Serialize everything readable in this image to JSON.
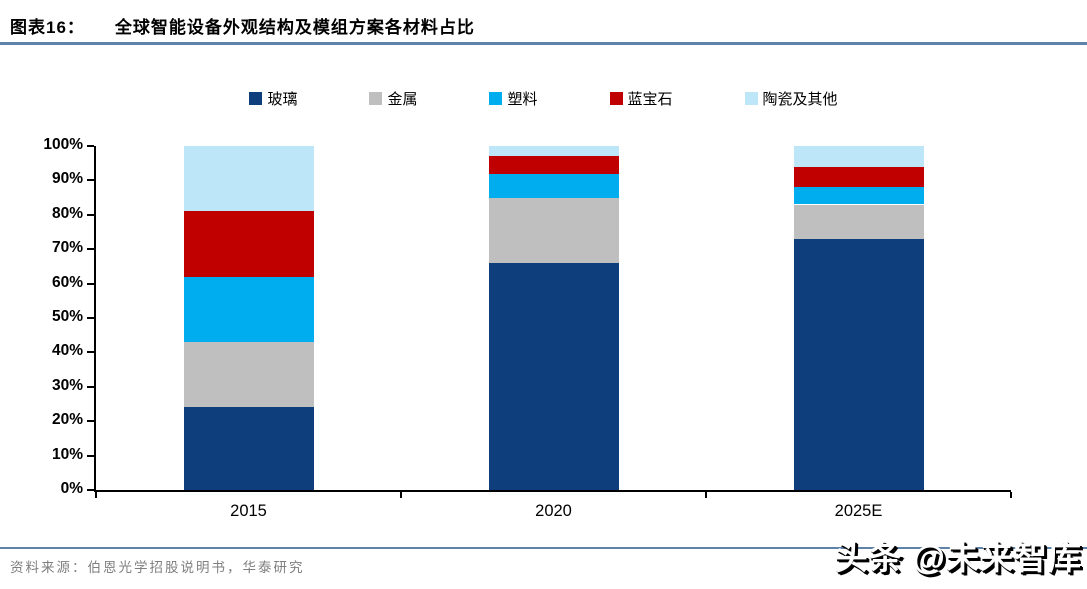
{
  "header": {
    "label": "图表16：",
    "title": "全球智能设备外观结构及模组方案各材料占比"
  },
  "chart_data": {
    "type": "bar",
    "stacked": true,
    "title": "全球智能设备外观结构及模组方案各材料占比",
    "categories": [
      "2015",
      "2020",
      "2025E"
    ],
    "series": [
      {
        "name": "玻璃",
        "color": "#0E3E7C",
        "values": [
          24,
          66,
          73
        ]
      },
      {
        "name": "金属",
        "color": "#BFBFBF",
        "values": [
          19,
          19,
          10
        ]
      },
      {
        "name": "塑料",
        "color": "#00AEEF",
        "values": [
          19,
          7,
          5
        ]
      },
      {
        "name": "蓝宝石",
        "color": "#C00000",
        "values": [
          19,
          5,
          6
        ]
      },
      {
        "name": "陶瓷及其他",
        "color": "#BDE7F8",
        "values": [
          19,
          3,
          6
        ]
      }
    ],
    "xlabel": "",
    "ylabel": "",
    "ylim": [
      0,
      100
    ],
    "yticklabels": [
      "0%",
      "10%",
      "20%",
      "30%",
      "40%",
      "50%",
      "60%",
      "70%",
      "80%",
      "90%",
      "100%"
    ],
    "legend_position": "top",
    "grid": false
  },
  "footer": {
    "source": "资料来源：伯恩光学招股说明书，华泰研究"
  },
  "watermark": {
    "text": "头条 @未来智库"
  },
  "colors": {
    "rule": "#5E82A8",
    "axis": "#000000",
    "source_text": "#7F7F7F"
  }
}
